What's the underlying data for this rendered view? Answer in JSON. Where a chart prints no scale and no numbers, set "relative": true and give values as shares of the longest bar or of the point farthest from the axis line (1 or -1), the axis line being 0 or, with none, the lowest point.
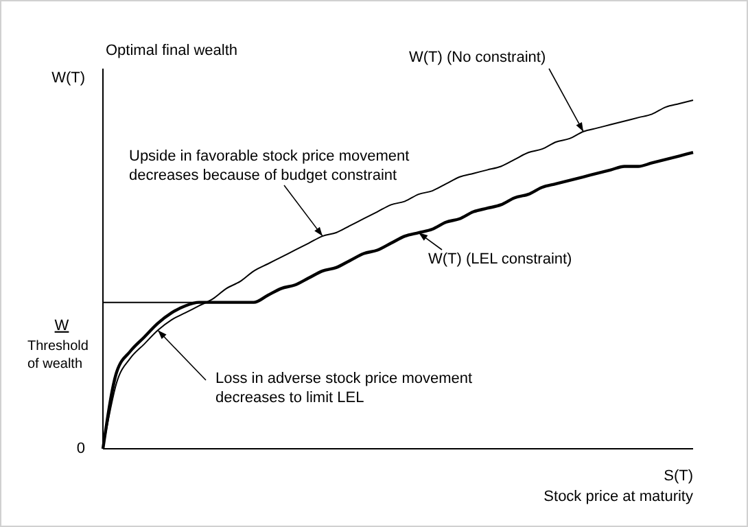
{
  "chart_data": {
    "type": "line",
    "relative": true,
    "title": "Optimal final wealth",
    "ylabel": "W(T)",
    "xlabel": "S(T)",
    "marker": "none",
    "categories": [
      null,
      null,
      null,
      null,
      null,
      null,
      null,
      null,
      null,
      null,
      null,
      null,
      null,
      null,
      null,
      null,
      null,
      null,
      null,
      null,
      null,
      null,
      null,
      null,
      null,
      null,
      null,
      null,
      null,
      null,
      null,
      null,
      null,
      null,
      null,
      null,
      null,
      null,
      null,
      null,
      null,
      null,
      null,
      null
    ],
    "series": [
      {
        "name": "W(T) (No constraint)",
        "color": "#000000",
        "values": [
          0,
          0.19,
          0.26,
          0.3,
          0.34,
          0.37,
          0.39,
          0.41,
          0.43,
          0.46,
          0.48,
          0.51,
          0.53,
          0.55,
          0.57,
          0.59,
          0.61,
          0.62,
          0.64,
          0.66,
          0.68,
          0.7,
          0.71,
          0.73,
          0.74,
          0.76,
          0.78,
          0.79,
          0.8,
          0.81,
          0.83,
          0.85,
          0.86,
          0.88,
          0.89,
          0.91,
          0.92,
          0.93,
          0.94,
          0.95,
          0.96,
          0.98,
          0.99,
          1
        ]
      },
      {
        "name": "W(T) (LEL constraint)",
        "color": "#000000",
        "values": [
          0,
          0.22,
          0.28,
          0.32,
          0.36,
          0.39,
          0.41,
          0.42,
          0.42,
          0.42,
          0.42,
          0.42,
          0.44,
          0.46,
          0.47,
          0.49,
          0.51,
          0.52,
          0.54,
          0.56,
          0.57,
          0.59,
          0.61,
          0.62,
          0.63,
          0.65,
          0.66,
          0.68,
          0.69,
          0.7,
          0.72,
          0.73,
          0.75,
          0.76,
          0.77,
          0.78,
          0.79,
          0.8,
          0.81,
          0.81,
          0.82,
          0.83,
          0.84,
          0.85
        ]
      }
    ],
    "ref_lines": [
      {
        "axis": "y",
        "value": 0.42,
        "label": "W",
        "color": "#000000",
        "line_style": "solid"
      }
    ],
    "annotations": [
      "0",
      "Threshold of wealth",
      "Upside in favorable stock price movement decreases because of budget constraint",
      "Loss in adverse stock price movement decreases to limit LEL",
      "Stock price at maturity"
    ]
  }
}
